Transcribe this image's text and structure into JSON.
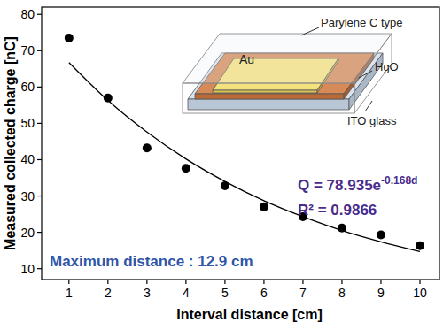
{
  "chart_data": {
    "type": "scatter",
    "x_label": "Interval distance [cm]",
    "y_label": "Measured collected charge [nC]",
    "x": [
      1,
      2,
      3,
      4,
      5,
      6,
      7,
      8,
      9,
      10
    ],
    "series": [
      {
        "type": "scatter",
        "marker": "circle",
        "color": "#000000",
        "values": [
          73.5,
          57,
          43.2,
          37.6,
          32.8,
          27,
          24.3,
          21.2,
          19.3,
          16.3
        ]
      },
      {
        "type": "line",
        "line_style": "solid",
        "color": "#000000",
        "values": [
          66.7,
          56.3,
          47.6,
          40.2,
          34.0,
          28.7,
          24.3,
          20.5,
          17.4,
          14.7
        ]
      }
    ],
    "xlim": [
      0.3,
      10.5
    ],
    "xticks": [
      1,
      2,
      3,
      4,
      5,
      6,
      7,
      8,
      9,
      10
    ],
    "ylim": [
      7,
      82
    ],
    "yticks": [
      10,
      20,
      30,
      40,
      50,
      60,
      70,
      80
    ],
    "grid": false,
    "equation": {
      "base": "Q = 78.935e",
      "exponent": "-0.168d",
      "color": "#4b2c8c"
    },
    "r_squared": {
      "text": "R² = 0.9866",
      "color": "#4b2c8c"
    },
    "note": {
      "text": "Maximum distance : 12.9 cm",
      "color": "#2f56a8"
    },
    "inset_labels": {
      "cover": "Parylene C type",
      "electrode": "Au",
      "layer": "HgO",
      "substrate": "ITO glass"
    }
  }
}
